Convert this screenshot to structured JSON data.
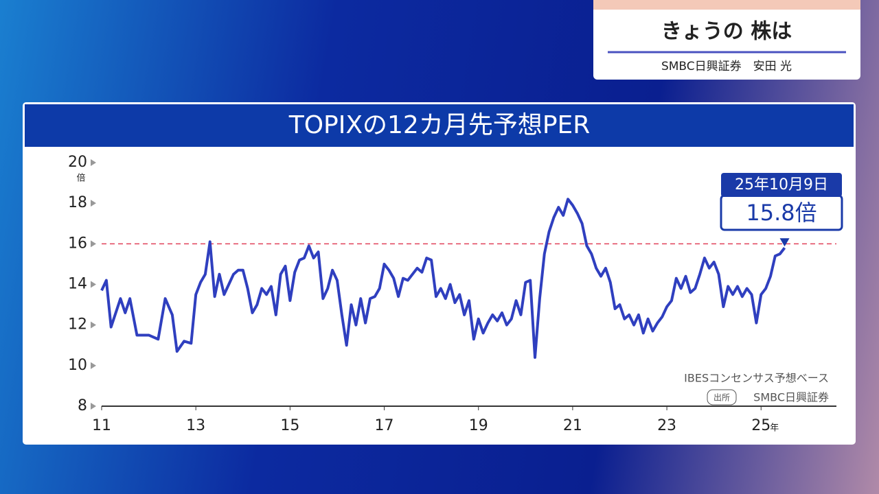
{
  "header": {
    "title": "きょうの 株は",
    "subtitle": "SMBC日興証券　安田 光"
  },
  "chart_data": {
    "type": "line",
    "title": "TOPIXの12カ月先予想PER",
    "y_unit": "倍",
    "x_unit": "年",
    "x": [
      2011.0,
      2011.1,
      2011.2,
      2011.4,
      2011.5,
      2011.6,
      2011.75,
      2012.0,
      2012.2,
      2012.35,
      2012.5,
      2012.6,
      2012.75,
      2012.9,
      2013.0,
      2013.1,
      2013.2,
      2013.3,
      2013.4,
      2013.5,
      2013.6,
      2013.7,
      2013.8,
      2013.9,
      2014.0,
      2014.1,
      2014.2,
      2014.3,
      2014.4,
      2014.5,
      2014.6,
      2014.7,
      2014.8,
      2014.9,
      2015.0,
      2015.1,
      2015.2,
      2015.3,
      2015.4,
      2015.5,
      2015.6,
      2015.7,
      2015.8,
      2015.9,
      2016.0,
      2016.1,
      2016.2,
      2016.3,
      2016.4,
      2016.5,
      2016.6,
      2016.7,
      2016.8,
      2016.9,
      2017.0,
      2017.1,
      2017.2,
      2017.3,
      2017.4,
      2017.5,
      2017.6,
      2017.7,
      2017.8,
      2017.9,
      2018.0,
      2018.1,
      2018.2,
      2018.3,
      2018.4,
      2018.5,
      2018.6,
      2018.7,
      2018.8,
      2018.9,
      2019.0,
      2019.1,
      2019.2,
      2019.3,
      2019.4,
      2019.5,
      2019.6,
      2019.7,
      2019.8,
      2019.9,
      2020.0,
      2020.1,
      2020.2,
      2020.3,
      2020.4,
      2020.5,
      2020.6,
      2020.7,
      2020.8,
      2020.9,
      2021.0,
      2021.1,
      2021.2,
      2021.3,
      2021.4,
      2021.5,
      2021.6,
      2021.7,
      2021.8,
      2021.9,
      2022.0,
      2022.1,
      2022.2,
      2022.3,
      2022.4,
      2022.5,
      2022.6,
      2022.7,
      2022.8,
      2022.9,
      2023.0,
      2023.1,
      2023.2,
      2023.3,
      2023.4,
      2023.5,
      2023.6,
      2023.7,
      2023.8,
      2023.9,
      2024.0,
      2024.1,
      2024.2,
      2024.3,
      2024.4,
      2024.5,
      2024.6,
      2024.7,
      2024.8,
      2024.9,
      2025.0,
      2025.1,
      2025.2,
      2025.3,
      2025.4,
      2025.5
    ],
    "series": [
      {
        "color": "#2f3fbf",
        "values": [
          13.7,
          14.2,
          11.9,
          13.3,
          12.6,
          13.3,
          11.5,
          11.5,
          11.3,
          13.3,
          12.5,
          10.7,
          11.2,
          11.1,
          13.5,
          14.1,
          14.5,
          16.1,
          13.4,
          14.5,
          13.5,
          14.0,
          14.5,
          14.7,
          14.7,
          13.8,
          12.6,
          13.0,
          13.8,
          13.5,
          13.9,
          12.5,
          14.5,
          14.9,
          13.2,
          14.6,
          15.2,
          15.3,
          15.9,
          15.3,
          15.6,
          13.3,
          13.8,
          14.7,
          14.2,
          12.5,
          11.0,
          13.0,
          12.0,
          13.3,
          12.1,
          13.3,
          13.4,
          13.8,
          15.0,
          14.7,
          14.3,
          13.4,
          14.3,
          14.2,
          14.5,
          14.8,
          14.6,
          15.3,
          15.2,
          13.4,
          13.8,
          13.3,
          14.0,
          13.1,
          13.5,
          12.5,
          13.2,
          11.3,
          12.3,
          11.6,
          12.1,
          12.5,
          12.2,
          12.6,
          12.0,
          12.3,
          13.2,
          12.5,
          14.1,
          14.2,
          10.4,
          13.3,
          15.5,
          16.6,
          17.3,
          17.8,
          17.4,
          18.2,
          17.9,
          17.5,
          17.0,
          15.9,
          15.5,
          14.8,
          14.4,
          14.8,
          14.1,
          12.8,
          13.0,
          12.3,
          12.5,
          12.0,
          12.5,
          11.6,
          12.3,
          11.7,
          12.1,
          12.4,
          12.9,
          13.2,
          14.3,
          13.8,
          14.4,
          13.6,
          13.8,
          14.5,
          15.3,
          14.8,
          15.1,
          14.5,
          12.9,
          13.9,
          13.5,
          13.9,
          13.4,
          13.8,
          13.5,
          12.1,
          13.5,
          13.8,
          14.4,
          15.4,
          15.5,
          15.8
        ]
      }
    ],
    "xlim": [
      2011,
      2026.6
    ],
    "ylim": [
      8,
      20
    ],
    "xticks": [
      {
        "value": 2011,
        "label": "11"
      },
      {
        "value": 2013,
        "label": "13"
      },
      {
        "value": 2015,
        "label": "15"
      },
      {
        "value": 2017,
        "label": "17"
      },
      {
        "value": 2019,
        "label": "19"
      },
      {
        "value": 2021,
        "label": "21"
      },
      {
        "value": 2023,
        "label": "23"
      },
      {
        "value": 2025,
        "label": "25"
      }
    ],
    "yticks": [
      8,
      10,
      12,
      14,
      16,
      18,
      20
    ],
    "reference_line": {
      "value": 16,
      "color": "#e0405a"
    },
    "annotation": {
      "date": "25年10月9日",
      "value": 15.8,
      "label": "15.8倍"
    },
    "note": "IBESコンセンサス予想ベース",
    "source_label": "出所",
    "source": "SMBC日興証券"
  }
}
